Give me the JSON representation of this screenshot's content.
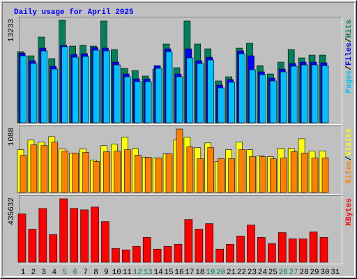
{
  "chart_data": [
    {
      "type": "bar",
      "title": "Daily usage for April 2025",
      "ylim": [
        0,
        13233
      ],
      "yticks": [
        13233
      ],
      "legend_separator": "/",
      "series": [
        {
          "name": "Hits",
          "color": "#00805c",
          "values": [
            9180,
            8640,
            11070,
            8280,
            13233,
            9900,
            9990,
            9900,
            13140,
            9450,
            7020,
            6750,
            6030,
            6930,
            10170,
            7110,
            13140,
            10170,
            9540,
            5400,
            5940,
            9630,
            10260,
            7380,
            6300,
            7830,
            9450,
            8370,
            8730,
            8730,
            0
          ]
        },
        {
          "name": "Files",
          "color": "#0000ff",
          "values": [
            9000,
            8010,
            9630,
            7290,
            9990,
            8820,
            8910,
            9720,
            9630,
            7830,
            6300,
            5670,
            5670,
            7380,
            9540,
            6300,
            9540,
            8010,
            8460,
            4860,
            5580,
            9270,
            8640,
            6570,
            5760,
            6930,
            7650,
            7830,
            7830,
            7740,
            0
          ]
        },
        {
          "name": "Pages",
          "color": "#00c0ff",
          "values": [
            8640,
            7650,
            9270,
            6930,
            9810,
            8460,
            8550,
            9360,
            9270,
            7470,
            5940,
            5310,
            5310,
            7020,
            9180,
            5940,
            8370,
            7650,
            8100,
            4500,
            5220,
            8910,
            6840,
            6210,
            5400,
            6570,
            7290,
            7470,
            7470,
            7380,
            0
          ]
        }
      ]
    },
    {
      "type": "bar",
      "ylim": [
        0,
        1088
      ],
      "yticks": [
        1088
      ],
      "legend_separator": "/",
      "series": [
        {
          "name": "Visits",
          "color": "#ffff00",
          "values": [
            733,
            899,
            863,
            958,
            745,
            674,
            745,
            556,
            804,
            828,
            946,
            757,
            603,
            591,
            662,
            899,
            946,
            769,
            851,
            532,
            733,
            863,
            733,
            627,
            615,
            757,
            757,
            922,
            710,
            710,
            0
          ]
        },
        {
          "name": "Sites",
          "color": "#ff8000",
          "values": [
            639,
            816,
            804,
            863,
            710,
            674,
            686,
            532,
            698,
            710,
            733,
            639,
            603,
            591,
            662,
            1088,
            781,
            579,
            769,
            579,
            579,
            733,
            615,
            615,
            579,
            591,
            698,
            674,
            591,
            591,
            0
          ]
        }
      ]
    },
    {
      "type": "bar",
      "ylim": [
        0,
        435632
      ],
      "yticks": [
        435632
      ],
      "legend_separator": "/",
      "series": [
        {
          "name": "KBytes",
          "color": "#ff0000",
          "values": [
            331450,
            227280,
            369330,
            189400,
            435632,
            369330,
            359860,
            378800,
            279365,
            94700,
            85230,
            108905,
            170460,
            89965,
            108905,
            123110,
            293570,
            227280,
            265160,
            89965,
            123110,
            179930,
            255690,
            170460,
            127845,
            203605,
            160990,
            160990,
            208340,
            170460,
            0
          ]
        }
      ],
      "categories": [
        "1",
        "2",
        "3",
        "4",
        "5",
        "6",
        "7",
        "8",
        "9",
        "10",
        "11",
        "12",
        "13",
        "14",
        "15",
        "16",
        "17",
        "18",
        "19",
        "20",
        "21",
        "22",
        "23",
        "24",
        "25",
        "26",
        "27",
        "28",
        "29",
        "30",
        "31"
      ],
      "category_colors": [
        "#000000",
        "#000000",
        "#000000",
        "#000000",
        "#00805c",
        "#00805c",
        "#000000",
        "#000000",
        "#000000",
        "#000000",
        "#000000",
        "#00805c",
        "#00805c",
        "#000000",
        "#000000",
        "#000000",
        "#000000",
        "#000000",
        "#00805c",
        "#00805c",
        "#000000",
        "#000000",
        "#000000",
        "#000000",
        "#000000",
        "#00805c",
        "#00805c",
        "#000000",
        "#000000",
        "#000000",
        "#000000"
      ]
    }
  ]
}
